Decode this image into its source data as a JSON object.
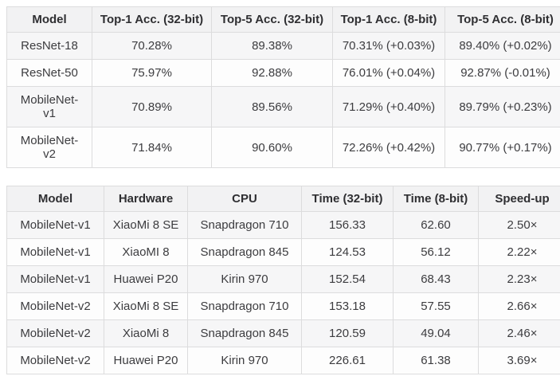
{
  "accuracy_table": {
    "columns": [
      "Model",
      "Top-1 Acc. (32-bit)",
      "Top-5 Acc. (32-bit)",
      "Top-1 Acc. (8-bit)",
      "Top-5 Acc. (8-bit)"
    ],
    "rows": [
      [
        "ResNet-18",
        "70.28%",
        "89.38%",
        "70.31% (+0.03%)",
        "89.40% (+0.02%)"
      ],
      [
        "ResNet-50",
        "75.97%",
        "92.88%",
        "76.01% (+0.04%)",
        "92.87% (-0.01%)"
      ],
      [
        "MobileNet-v1",
        "70.89%",
        "89.56%",
        "71.29% (+0.40%)",
        "89.79% (+0.23%)"
      ],
      [
        "MobileNet-v2",
        "71.84%",
        "90.60%",
        "72.26% (+0.42%)",
        "90.77% (+0.17%)"
      ]
    ]
  },
  "timing_table": {
    "columns": [
      "Model",
      "Hardware",
      "CPU",
      "Time (32-bit)",
      "Time (8-bit)",
      "Speed-up"
    ],
    "rows": [
      [
        "MobileNet-v1",
        "XiaoMi 8 SE",
        "Snapdragon 710",
        "156.33",
        "62.60",
        "2.50×"
      ],
      [
        "MobileNet-v1",
        "XiaoMI 8",
        "Snapdragon 845",
        "124.53",
        "56.12",
        "2.22×"
      ],
      [
        "MobileNet-v1",
        "Huawei P20",
        "Kirin 970",
        "152.54",
        "68.43",
        "2.23×"
      ],
      [
        "MobileNet-v2",
        "XiaoMi 8 SE",
        "Snapdragon 710",
        "153.18",
        "57.55",
        "2.66×"
      ],
      [
        "MobileNet-v2",
        "XiaoMi 8",
        "Snapdragon 845",
        "120.59",
        "49.04",
        "2.46×"
      ],
      [
        "MobileNet-v2",
        "Huawei P20",
        "Kirin 970",
        "226.61",
        "61.38",
        "3.69×"
      ]
    ]
  },
  "colors": {
    "header_bg": "#f2f2f3",
    "stripe_bg": "#f6f6f7",
    "row_bg": "#fdfdfd",
    "border": "#dcdcdd",
    "text": "#3c3c3f",
    "header_text": "#2f2f32"
  }
}
